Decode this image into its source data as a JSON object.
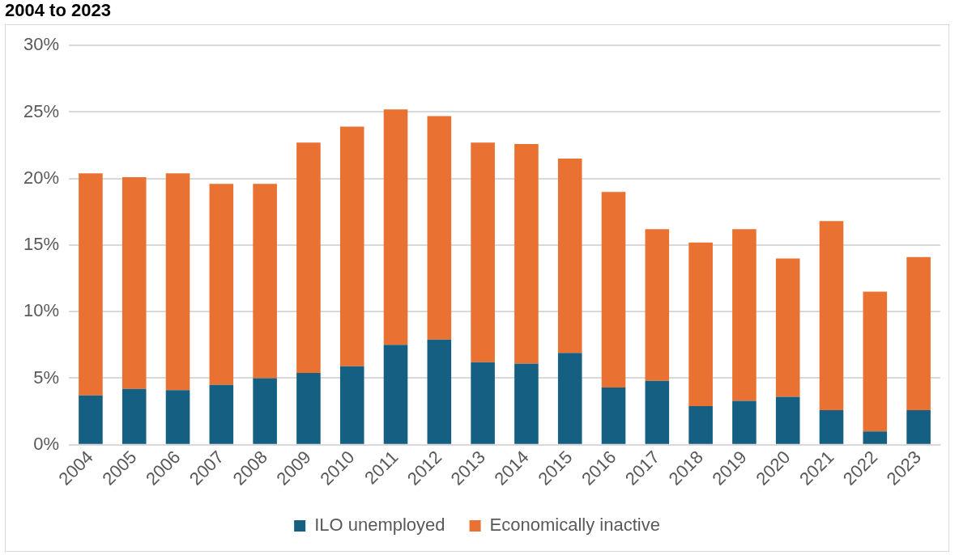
{
  "chart_data": {
    "type": "bar",
    "title": "2004 to 2023",
    "stacked": true,
    "grid": "y",
    "legend": "bottom",
    "categories": [
      "2004",
      "2005",
      "2006",
      "2007",
      "2008",
      "2009",
      "2010",
      "2011",
      "2012",
      "2013",
      "2014",
      "2015",
      "2016",
      "2017",
      "2018",
      "2019",
      "2020",
      "2021",
      "2022",
      "2023"
    ],
    "series": [
      {
        "name": "ILO unemployed",
        "color": "#155f82",
        "values": [
          3.7,
          4.2,
          4.1,
          4.5,
          5.0,
          5.4,
          5.9,
          7.5,
          7.9,
          6.2,
          6.1,
          6.9,
          4.3,
          4.8,
          2.9,
          3.3,
          3.6,
          2.6,
          1.0,
          2.6
        ]
      },
      {
        "name": "Economically inactive",
        "color": "#e97132",
        "values": [
          16.7,
          15.9,
          16.3,
          15.1,
          14.6,
          17.3,
          18.0,
          17.7,
          16.8,
          16.5,
          16.5,
          14.6,
          14.7,
          11.4,
          12.3,
          12.9,
          10.4,
          14.2,
          10.5,
          11.5
        ]
      }
    ],
    "ylim": [
      0,
      30
    ],
    "yticks": [
      {
        "value": 0,
        "label": "0%"
      },
      {
        "value": 5,
        "label": "5%"
      },
      {
        "value": 10,
        "label": "10%"
      },
      {
        "value": 15,
        "label": "15%"
      },
      {
        "value": 20,
        "label": "20%"
      },
      {
        "value": 25,
        "label": "25%"
      },
      {
        "value": 30,
        "label": "30%"
      }
    ]
  }
}
